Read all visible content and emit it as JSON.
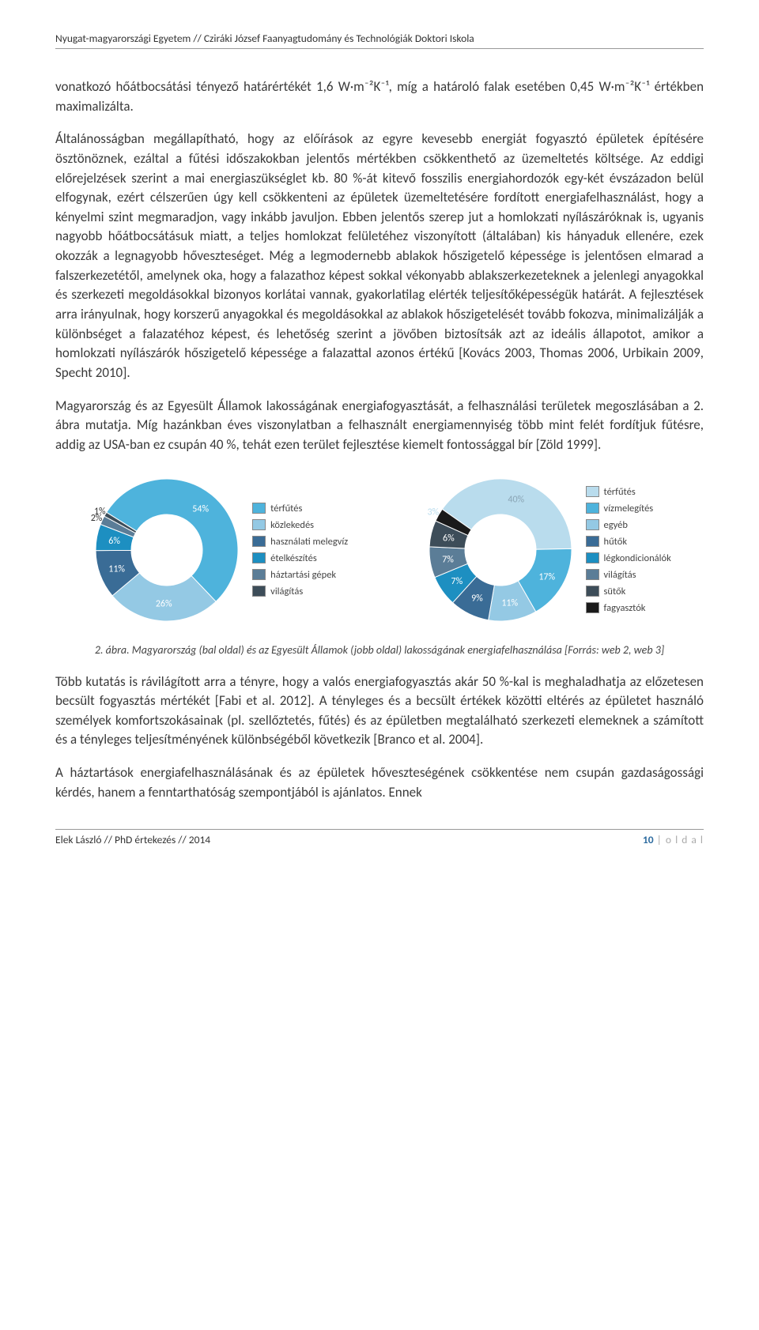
{
  "header": "Nyugat-magyarországi Egyetem // Cziráki József Faanyagtudomány és Technológiák Doktori Iskola",
  "p1": "vonatkozó hőátbocsátási tényező határértékét 1,6 W·m⁻²K⁻¹, míg a határoló falak esetében 0,45 W·m⁻²K⁻¹ értékben maximalizálta.",
  "p2": "Általánosságban megállapítható, hogy az előírások az egyre kevesebb energiát fogyasztó épületek építésére ösztönöznek, ezáltal a fűtési időszakokban jelentős mértékben csökkenthető az üzemeltetés költsége. Az eddigi előrejelzések szerint a mai energiaszükséglet kb. 80 %-át kitevő fosszilis energiahordozók egy-két évszázadon belül elfogynak, ezért célszerűen úgy kell csökkenteni az épületek üzemeltetésére fordított energiafelhasználást, hogy a kényelmi szint megmaradjon, vagy inkább javuljon. Ebben jelentős szerep jut a homlokzati nyílászáróknak is, ugyanis nagyobb hőátbocsátásuk miatt, a teljes homlokzat felületéhez viszonyított (általában) kis hányaduk ellenére, ezek okozzák a legnagyobb hőveszteséget. Még a legmodernebb ablakok hőszigetelő képessége is jelentősen elmarad a falszerkezetétől, amelynek oka, hogy a falazathoz képest sokkal vékonyabb ablakszerkezeteknek a jelenlegi anyagokkal és szerkezeti megoldásokkal bizonyos korlátai vannak, gyakorlatilag elérték teljesítőképességük határát. A fejlesztések arra irányulnak, hogy korszerű anyagokkal és megoldásokkal az ablakok hőszigetelését tovább fokozva, minimalizálják a különbséget a falazatéhoz képest, és lehetőség szerint a jövőben biztosítsák azt az ideális állapotot, amikor a homlokzati nyílászárók hőszigetelő képessége a falazattal azonos értékű [Kovács 2003, Thomas 2006, Urbikain 2009, Specht 2010].",
  "p3": "Magyarország és az Egyesült Államok lakosságának energiafogyasztását, a felhasználási területek megoszlásában a 2. ábra mutatja. Míg hazánkban éves viszonylatban a felhasznált energiamennyiség több mint felét fordítjuk fűtésre, addig az USA-ban ez csupán 40 %, tehát ezen terület fejlesztése kiemelt fontossággal bír [Zöld 1999].",
  "caption": "2. ábra. Magyarország (bal oldal) és az Egyesült Államok (jobb oldal) lakosságának energiafelhasználása [Forrás: web 2, web 3]",
  "p4": "Több kutatás is rávilágított arra a tényre, hogy a valós energiafogyasztás akár 50 %-kal is meghaladhatja az előzetesen becsült fogyasztás mértékét [Fabi et al. 2012]. A tényleges és a becsült értékek közötti eltérés az épületet használó személyek komfortszokásainak (pl. szellőztetés, fűtés) és az épületben megtalálható szerkezeti elemeknek a számított és a tényleges teljesítményének különbségéből következik [Branco et al. 2004].",
  "p5": "A háztartások energiafelhasználásának és az épületek hőveszteségének csökkentése nem csupán gazdaságossági kérdés, hanem a fenntarthatóság szempontjából is ajánlatos. Ennek",
  "footer_left": "Elek László // PhD értekezés // 2014",
  "footer_page_num": "10",
  "footer_page_label": " | o l d a l",
  "chart_left": {
    "type": "donut",
    "inner_radius_ratio": 0.5,
    "background_color": "#ffffff",
    "ring_background": "#dfe8ee",
    "slices": [
      {
        "label": "térfűtés",
        "value": 54,
        "color": "#4eb3dc",
        "label_text": "54%",
        "label_color": "#ffffff"
      },
      {
        "label": "közlekedés",
        "value": 26,
        "color": "#94c9e4",
        "label_text": "26%",
        "label_color": "#ffffff"
      },
      {
        "label": "használati melegvíz",
        "value": 11,
        "color": "#3a6c96",
        "label_text": "11%",
        "label_color": "#ffffff"
      },
      {
        "label": "ételkészítés",
        "value": 6,
        "color": "#1d8fc1",
        "label_text": "6%",
        "label_color": "#ffffff"
      },
      {
        "label": "háztartási gépek",
        "value": 2,
        "color": "#5b7d97",
        "label_text": "2%",
        "label_color": "#333333"
      },
      {
        "label": "világítás",
        "value": 1,
        "color": "#3d4d59",
        "label_text": "1%",
        "label_color": "#333333"
      }
    ],
    "legend": [
      {
        "label": "térfűtés",
        "color": "#4eb3dc"
      },
      {
        "label": "közlekedés",
        "color": "#94c9e4"
      },
      {
        "label": "használati melegvíz",
        "color": "#3a6c96"
      },
      {
        "label": "ételkészítés",
        "color": "#1d8fc1"
      },
      {
        "label": "háztartási gépek",
        "color": "#5b7d97"
      },
      {
        "label": "világítás",
        "color": "#3d4d59"
      }
    ],
    "label_fontsize": 12,
    "start_angle_deg": -58
  },
  "chart_right": {
    "type": "donut",
    "inner_radius_ratio": 0.5,
    "background_color": "#ffffff",
    "ring_background": "#dfe8ee",
    "slices": [
      {
        "label": "térfűtés",
        "value": 40,
        "color": "#b9dced",
        "label_text": "40%",
        "label_color": "#8aa5b5"
      },
      {
        "label": "vízmelegítés",
        "value": 17,
        "color": "#4eb3dc",
        "label_text": "17%",
        "label_color": "#ffffff"
      },
      {
        "label": "egyéb",
        "value": 11,
        "color": "#94c9e4",
        "label_text": "11%",
        "label_color": "#ffffff"
      },
      {
        "label": "hűtők",
        "value": 9,
        "color": "#3a6c96",
        "label_text": "9%",
        "label_color": "#ffffff"
      },
      {
        "label": "légkondicionálók",
        "value": 7,
        "color": "#1d8fc1",
        "label_text": "7%",
        "label_color": "#ffffff"
      },
      {
        "label": "világítás",
        "value": 7,
        "color": "#5b7d97",
        "label_text": "7%",
        "label_color": "#ffffff"
      },
      {
        "label": "sütők",
        "value": 6,
        "color": "#3d4d59",
        "label_text": "6%",
        "label_color": "#ffffff"
      },
      {
        "label": "fagyasztók",
        "value": 3,
        "color": "#1a1a1a",
        "label_text": "3%",
        "label_color": "#b9dced"
      }
    ],
    "legend": [
      {
        "label": "térfűtés",
        "color": "#b9dced"
      },
      {
        "label": "vízmelegítés",
        "color": "#4eb3dc"
      },
      {
        "label": "egyéb",
        "color": "#94c9e4"
      },
      {
        "label": "hűtők",
        "color": "#3a6c96"
      },
      {
        "label": "légkondicionálók",
        "color": "#1d8fc1"
      },
      {
        "label": "világítás",
        "color": "#5b7d97"
      },
      {
        "label": "sütők",
        "color": "#3d4d59"
      },
      {
        "label": "fagyasztók",
        "color": "#1a1a1a"
      }
    ],
    "label_fontsize": 12,
    "start_angle_deg": -55
  }
}
